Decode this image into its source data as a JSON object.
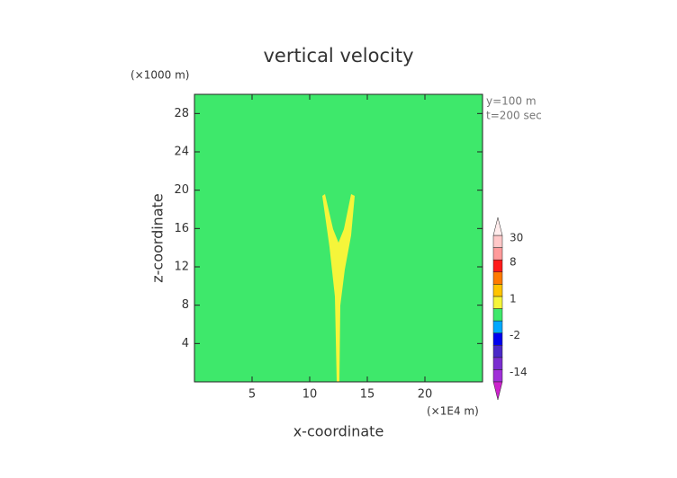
{
  "chart_data": {
    "type": "contour",
    "title": "vertical velocity",
    "y_unit": "(×1000 m)",
    "x_unit": "(×1E4 m)",
    "annotations": [
      "y=100 m",
      "t=200 sec"
    ],
    "x_label": "x-coordinate",
    "y_label": "z-coordinate",
    "xlim": [
      0,
      25
    ],
    "xticks": [
      5,
      10,
      15,
      20
    ],
    "ylim": [
      0,
      30
    ],
    "yticks": [
      4,
      8,
      12,
      16,
      20,
      24,
      28
    ],
    "background_color": "#3ee86b",
    "colorbar": {
      "levels": [
        -20,
        -14,
        -8,
        -4,
        -2,
        -1,
        0,
        1,
        2,
        4,
        8,
        16,
        30
      ],
      "colors": [
        "#cc22cc",
        "#a030d8",
        "#7a2ed0",
        "#4a28c8",
        "#0000ee",
        "#00a8ff",
        "#3ee86b",
        "#f5f53a",
        "#ffc400",
        "#ff7a00",
        "#ff1a1a",
        "#ff9a9a",
        "#ffc8c8",
        "#ffecec"
      ],
      "ticks": [
        30,
        8,
        1,
        -2,
        -14
      ]
    }
  }
}
